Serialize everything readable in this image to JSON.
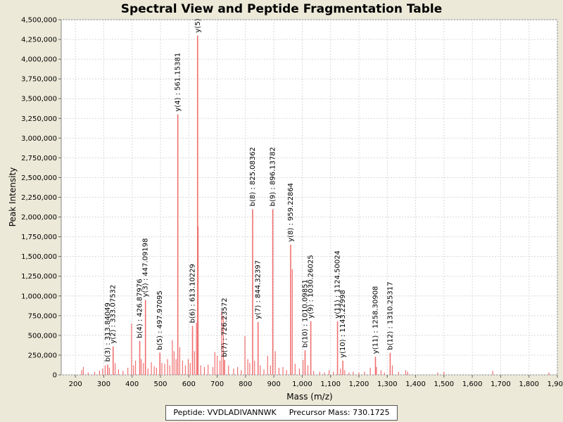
{
  "chart_data": {
    "type": "bar",
    "title": "Spectral View and Peptide Fragmentation Table",
    "xlabel": "Mass (m/z)",
    "ylabel": "Peak Intensity",
    "xlim": [
      150,
      1900
    ],
    "ylim": [
      0,
      4500000
    ],
    "x_ticks": [
      200,
      300,
      400,
      500,
      600,
      700,
      800,
      900,
      1000,
      1100,
      1200,
      1300,
      1400,
      1500,
      1600,
      1700,
      1800,
      1900
    ],
    "x_tick_labels": [
      "200",
      "300",
      "400",
      "500",
      "600",
      "700",
      "800",
      "900",
      "1,000",
      "1,100",
      "1,200",
      "1,300",
      "1,400",
      "1,500",
      "1,600",
      "1,700",
      "1,800",
      "1,900"
    ],
    "y_ticks": [
      0,
      250000,
      500000,
      750000,
      1000000,
      1250000,
      1500000,
      1750000,
      2000000,
      2250000,
      2500000,
      2750000,
      3000000,
      3250000,
      3500000,
      3750000,
      4000000,
      4250000,
      4500000
    ],
    "y_tick_labels": [
      "0",
      "250,000",
      "500,000",
      "750,000",
      "1,000,000",
      "1,250,000",
      "1,500,000",
      "1,750,000",
      "2,000,000",
      "2,250,000",
      "2,500,000",
      "2,750,000",
      "3,000,000",
      "3,250,000",
      "3,500,000",
      "3,750,000",
      "4,000,000",
      "4,250,000",
      "4,500,000"
    ],
    "grid": true,
    "series_color": "#f07070",
    "annotated_peaks": [
      {
        "label": "b(3) : 313.84049",
        "mz": 313.84,
        "intensity": 130000
      },
      {
        "label": "y(2) : 333.07532",
        "mz": 333.08,
        "intensity": 360000
      },
      {
        "label": "b(4) : 426.87976",
        "mz": 426.88,
        "intensity": 430000
      },
      {
        "label": "y(3) : 447.09198",
        "mz": 447.09,
        "intensity": 950000
      },
      {
        "label": "b(5) : 497.97095",
        "mz": 497.97,
        "intensity": 280000
      },
      {
        "label": "y(4) : 561.15381",
        "mz": 561.15,
        "intensity": 3300000
      },
      {
        "label": "b(6) : 613.10229",
        "mz": 613.1,
        "intensity": 620000
      },
      {
        "label": "y(5)",
        "mz": 631.0,
        "intensity": 4300000
      },
      {
        "label": "b(7) : 726.23572",
        "mz": 726.24,
        "intensity": 190000
      },
      {
        "label": "b(8) : 825.08362",
        "mz": 825.08,
        "intensity": 2100000
      },
      {
        "label": "y(7) : 844.32397",
        "mz": 844.32,
        "intensity": 670000
      },
      {
        "label": "b(9) : 896.13782",
        "mz": 896.14,
        "intensity": 2100000
      },
      {
        "label": "y(8) : 959.22864",
        "mz": 959.23,
        "intensity": 1650000
      },
      {
        "label": "b(10) : 1010.09851",
        "mz": 1010.1,
        "intensity": 310000
      },
      {
        "label": "y(9) : 1030.26025",
        "mz": 1030.26,
        "intensity": 680000
      },
      {
        "label": "y(10) : 1143.22998",
        "mz": 1143.23,
        "intensity": 180000
      },
      {
        "label": "y(11) : 1124.50024",
        "mz": 1124.5,
        "intensity": 680000
      },
      {
        "label": "y(11) : 1258.30908",
        "mz": 1258.31,
        "intensity": 230000
      },
      {
        "label": "b(12) : 1310.25317",
        "mz": 1310.25,
        "intensity": 280000
      }
    ],
    "other_peaks": [
      {
        "mz": 222,
        "intensity": 60000
      },
      {
        "mz": 228,
        "intensity": 100000
      },
      {
        "mz": 245,
        "intensity": 30000
      },
      {
        "mz": 268,
        "intensity": 40000
      },
      {
        "mz": 285,
        "intensity": 55000
      },
      {
        "mz": 296,
        "intensity": 80000
      },
      {
        "mz": 305,
        "intensity": 120000
      },
      {
        "mz": 320,
        "intensity": 90000
      },
      {
        "mz": 340,
        "intensity": 150000
      },
      {
        "mz": 352,
        "intensity": 70000
      },
      {
        "mz": 368,
        "intensity": 50000
      },
      {
        "mz": 385,
        "intensity": 90000
      },
      {
        "mz": 398,
        "intensity": 650000
      },
      {
        "mz": 405,
        "intensity": 120000
      },
      {
        "mz": 412,
        "intensity": 180000
      },
      {
        "mz": 432,
        "intensity": 200000
      },
      {
        "mz": 440,
        "intensity": 150000
      },
      {
        "mz": 456,
        "intensity": 80000
      },
      {
        "mz": 468,
        "intensity": 160000
      },
      {
        "mz": 478,
        "intensity": 110000
      },
      {
        "mz": 486,
        "intensity": 90000
      },
      {
        "mz": 505,
        "intensity": 150000
      },
      {
        "mz": 515,
        "intensity": 140000
      },
      {
        "mz": 525,
        "intensity": 200000
      },
      {
        "mz": 533,
        "intensity": 120000
      },
      {
        "mz": 542,
        "intensity": 440000
      },
      {
        "mz": 548,
        "intensity": 300000
      },
      {
        "mz": 555,
        "intensity": 200000
      },
      {
        "mz": 568,
        "intensity": 350000
      },
      {
        "mz": 578,
        "intensity": 180000
      },
      {
        "mz": 588,
        "intensity": 120000
      },
      {
        "mz": 598,
        "intensity": 200000
      },
      {
        "mz": 605,
        "intensity": 150000
      },
      {
        "mz": 620,
        "intensity": 300000
      },
      {
        "mz": 627,
        "intensity": 660000
      },
      {
        "mz": 633,
        "intensity": 1880000
      },
      {
        "mz": 642,
        "intensity": 120000
      },
      {
        "mz": 655,
        "intensity": 100000
      },
      {
        "mz": 668,
        "intensity": 130000
      },
      {
        "mz": 685,
        "intensity": 100000
      },
      {
        "mz": 692,
        "intensity": 290000
      },
      {
        "mz": 700,
        "intensity": 240000
      },
      {
        "mz": 710,
        "intensity": 180000
      },
      {
        "mz": 716,
        "intensity": 810000
      },
      {
        "mz": 722,
        "intensity": 750000
      },
      {
        "mz": 740,
        "intensity": 120000
      },
      {
        "mz": 758,
        "intensity": 80000
      },
      {
        "mz": 772,
        "intensity": 100000
      },
      {
        "mz": 785,
        "intensity": 60000
      },
      {
        "mz": 798,
        "intensity": 490000
      },
      {
        "mz": 808,
        "intensity": 200000
      },
      {
        "mz": 815,
        "intensity": 150000
      },
      {
        "mz": 832,
        "intensity": 180000
      },
      {
        "mz": 852,
        "intensity": 120000
      },
      {
        "mz": 865,
        "intensity": 70000
      },
      {
        "mz": 878,
        "intensity": 240000
      },
      {
        "mz": 888,
        "intensity": 120000
      },
      {
        "mz": 905,
        "intensity": 300000
      },
      {
        "mz": 918,
        "intensity": 90000
      },
      {
        "mz": 932,
        "intensity": 100000
      },
      {
        "mz": 945,
        "intensity": 60000
      },
      {
        "mz": 965,
        "intensity": 1340000
      },
      {
        "mz": 975,
        "intensity": 140000
      },
      {
        "mz": 990,
        "intensity": 80000
      },
      {
        "mz": 1003,
        "intensity": 190000
      },
      {
        "mz": 1020,
        "intensity": 120000
      },
      {
        "mz": 1040,
        "intensity": 50000
      },
      {
        "mz": 1062,
        "intensity": 40000
      },
      {
        "mz": 1078,
        "intensity": 30000
      },
      {
        "mz": 1095,
        "intensity": 60000
      },
      {
        "mz": 1110,
        "intensity": 40000
      },
      {
        "mz": 1135,
        "intensity": 80000
      },
      {
        "mz": 1150,
        "intensity": 60000
      },
      {
        "mz": 1165,
        "intensity": 30000
      },
      {
        "mz": 1180,
        "intensity": 40000
      },
      {
        "mz": 1200,
        "intensity": 30000
      },
      {
        "mz": 1220,
        "intensity": 40000
      },
      {
        "mz": 1240,
        "intensity": 90000
      },
      {
        "mz": 1262,
        "intensity": 100000
      },
      {
        "mz": 1278,
        "intensity": 60000
      },
      {
        "mz": 1290,
        "intensity": 30000
      },
      {
        "mz": 1318,
        "intensity": 120000
      },
      {
        "mz": 1340,
        "intensity": 40000
      },
      {
        "mz": 1365,
        "intensity": 60000
      },
      {
        "mz": 1372,
        "intensity": 40000
      },
      {
        "mz": 1478,
        "intensity": 30000
      },
      {
        "mz": 1500,
        "intensity": 40000
      },
      {
        "mz": 1672,
        "intensity": 50000
      },
      {
        "mz": 1870,
        "intensity": 30000
      }
    ]
  },
  "legend": {
    "peptide_text": "Peptide: VVDLADIVANNWK",
    "precursor_text": "Precursor Mass: 730.1725"
  }
}
